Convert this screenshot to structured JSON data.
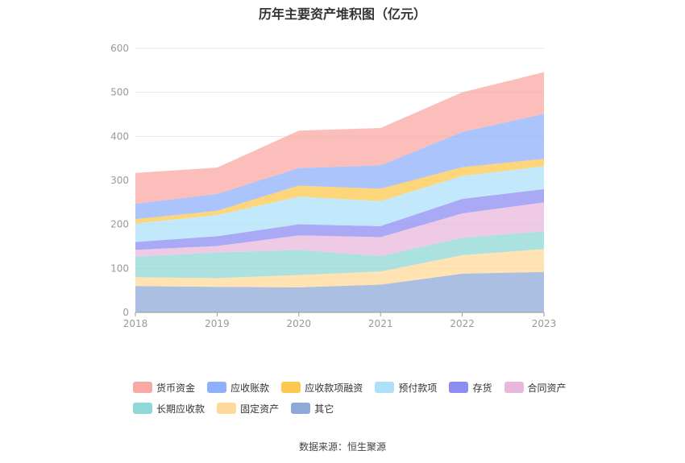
{
  "chart_data": {
    "type": "area",
    "stacked": true,
    "title": "历年主要资产堆积图（亿元）",
    "categories": [
      "2018",
      "2019",
      "2020",
      "2021",
      "2022",
      "2023"
    ],
    "ylim": [
      0,
      600
    ],
    "yticks": [
      0,
      100,
      200,
      300,
      400,
      500,
      600
    ],
    "grid": true,
    "legend_position": "bottom",
    "series": [
      {
        "name": "其它",
        "color": "#8ea9d8",
        "values": [
          60,
          58,
          57,
          63,
          88,
          92
        ]
      },
      {
        "name": "固定资产",
        "color": "#ffd99a",
        "values": [
          20,
          20,
          28,
          30,
          42,
          52
        ]
      },
      {
        "name": "长期应收款",
        "color": "#8fd8d6",
        "values": [
          47,
          58,
          57,
          35,
          40,
          40
        ]
      },
      {
        "name": "合同资产",
        "color": "#e8b8dc",
        "values": [
          15,
          15,
          33,
          43,
          55,
          66
        ]
      },
      {
        "name": "存货",
        "color": "#8c8cf2",
        "values": [
          18,
          22,
          25,
          25,
          33,
          30
        ]
      },
      {
        "name": "预付款项",
        "color": "#aee1f9",
        "values": [
          42,
          48,
          63,
          57,
          52,
          52
        ]
      },
      {
        "name": "应收款项融资",
        "color": "#fcc850",
        "values": [
          10,
          10,
          25,
          28,
          20,
          17
        ]
      },
      {
        "name": "应收账款",
        "color": "#8fb0fa",
        "values": [
          35,
          38,
          40,
          53,
          80,
          102
        ]
      },
      {
        "name": "货币资金",
        "color": "#f9a8a3",
        "values": [
          70,
          60,
          85,
          85,
          90,
          95
        ]
      }
    ]
  },
  "legend": [
    {
      "label": "货币资金",
      "color": "#f9a8a3"
    },
    {
      "label": "应收账款",
      "color": "#8fb0fa"
    },
    {
      "label": "应收款项融资",
      "color": "#fcc850"
    },
    {
      "label": "预付款项",
      "color": "#aee1f9"
    },
    {
      "label": "存货",
      "color": "#8c8cf2"
    },
    {
      "label": "合同资产",
      "color": "#e8b8dc"
    },
    {
      "label": "长期应收款",
      "color": "#8fd8d6"
    },
    {
      "label": "固定资产",
      "color": "#ffd99a"
    },
    {
      "label": "其它",
      "color": "#8ea9d8"
    }
  ],
  "source": "数据来源：恒生聚源"
}
